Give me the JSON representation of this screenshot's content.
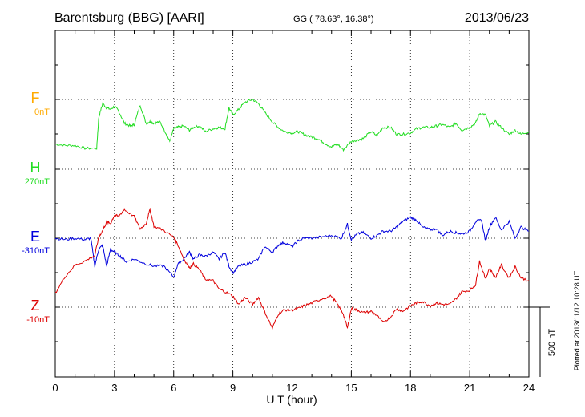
{
  "header": {
    "station": "Barentsburg (BBG)  [AARI]",
    "coords": "GG ( 78.63°,  16.38°)",
    "date": "2013/06/23"
  },
  "footer": {
    "plotted": "Plotted at 2013/11/12 10:28 UT"
  },
  "chart_data": {
    "type": "line",
    "xlabel": "U T (hour)",
    "xlim": [
      0,
      24
    ],
    "xticks": [
      "0",
      "3",
      "6",
      "9",
      "12",
      "15",
      "18",
      "21",
      "24"
    ],
    "scale_bar_label": "500 nT",
    "grid": true,
    "series": [
      {
        "name": "F",
        "baseline_label": "0nT",
        "color": "#ffaa00",
        "x": [],
        "y": []
      },
      {
        "name": "H",
        "baseline_label": "270nT",
        "color": "#22dd22",
        "x": [
          0,
          0.5,
          1,
          1.5,
          2.1,
          2.2,
          2.4,
          2.6,
          2.8,
          3,
          3.2,
          3.5,
          3.8,
          4,
          4.3,
          4.6,
          4.8,
          5,
          5.3,
          5.6,
          5.8,
          6,
          6.2,
          6.5,
          6.8,
          7,
          7.3,
          7.6,
          8,
          8.3,
          8.6,
          8.8,
          9,
          9.3,
          9.6,
          10,
          10.3,
          10.6,
          11,
          11.3,
          11.6,
          12,
          12.3,
          12.6,
          13,
          13.3,
          13.6,
          14,
          14.3,
          14.6,
          15,
          15.3,
          15.6,
          16,
          16.3,
          16.6,
          17,
          17.3,
          17.6,
          18,
          18.3,
          18.6,
          19,
          19.3,
          19.6,
          20,
          20.3,
          20.6,
          21,
          21.3,
          21.5,
          21.8,
          22,
          22.3,
          22.6,
          23,
          23.3,
          23.6,
          24
        ],
        "y": [
          180,
          170,
          170,
          150,
          150,
          370,
          470,
          440,
          430,
          450,
          420,
          330,
          310,
          320,
          460,
          330,
          340,
          330,
          340,
          260,
          200,
          290,
          300,
          310,
          280,
          300,
          310,
          270,
          290,
          300,
          290,
          440,
          390,
          430,
          480,
          500,
          470,
          410,
          340,
          300,
          270,
          260,
          270,
          250,
          230,
          220,
          190,
          160,
          180,
          140,
          200,
          210,
          220,
          270,
          240,
          300,
          300,
          250,
          250,
          260,
          290,
          300,
          300,
          310,
          320,
          300,
          330,
          280,
          300,
          330,
          400,
          390,
          310,
          340,
          300,
          250,
          280,
          250,
          270
        ]
      },
      {
        "name": "E",
        "baseline_label": "-310nT",
        "color": "#0000dd",
        "x": [
          0,
          0.5,
          1,
          1.5,
          1.8,
          2,
          2.2,
          2.4,
          2.6,
          2.8,
          3,
          3.3,
          3.6,
          4,
          4.5,
          5,
          5.5,
          6,
          6.2,
          6.5,
          6.8,
          7,
          7.3,
          7.6,
          8,
          8.3,
          8.6,
          8.8,
          9,
          9.3,
          9.6,
          10,
          10.3,
          10.6,
          11,
          11.3,
          11.6,
          12,
          12.3,
          12.6,
          13,
          13.5,
          14,
          14.5,
          14.8,
          15,
          15.3,
          15.6,
          16,
          16.3,
          16.6,
          17,
          17.3,
          17.6,
          18,
          18.3,
          18.6,
          19,
          19.3,
          19.6,
          20,
          20.3,
          20.6,
          21,
          21.3,
          21.6,
          21.8,
          22,
          22.3,
          22.6,
          23,
          23.3,
          23.6,
          24
        ],
        "y": [
          0,
          -10,
          0,
          -10,
          0,
          -200,
          -80,
          -50,
          -200,
          -80,
          -100,
          -130,
          -170,
          -150,
          -180,
          -200,
          -200,
          -280,
          -190,
          -150,
          -100,
          -150,
          -120,
          -130,
          -100,
          -150,
          -100,
          -200,
          -250,
          -200,
          -190,
          -170,
          -150,
          -60,
          -100,
          -50,
          -30,
          -60,
          -20,
          0,
          0,
          10,
          20,
          0,
          100,
          -10,
          30,
          40,
          0,
          20,
          50,
          50,
          80,
          120,
          150,
          130,
          80,
          60,
          70,
          20,
          50,
          40,
          30,
          50,
          120,
          130,
          -20,
          80,
          150,
          60,
          120,
          0,
          80,
          50
        ]
      },
      {
        "name": "Z",
        "baseline_label": "-10nT",
        "color": "#dd0000",
        "x": [
          0,
          0.5,
          1,
          1.5,
          2,
          2.2,
          2.4,
          2.6,
          2.8,
          3,
          3.2,
          3.5,
          4,
          4.3,
          4.6,
          4.8,
          5,
          5.5,
          6,
          6.2,
          6.5,
          6.8,
          7,
          7.3,
          7.6,
          8,
          8.3,
          8.6,
          9,
          9.3,
          9.6,
          10,
          10.3,
          10.6,
          11,
          11.3,
          11.6,
          12,
          12.3,
          12.6,
          13,
          13.5,
          14,
          14.3,
          14.6,
          14.8,
          15,
          15.3,
          15.6,
          16,
          16.3,
          16.6,
          17,
          17.3,
          17.6,
          18,
          18.3,
          18.6,
          19,
          19.3,
          19.6,
          20,
          20.3,
          20.6,
          21,
          21.3,
          21.5,
          21.8,
          22,
          22.3,
          22.6,
          23,
          23.3,
          23.6,
          24
        ],
        "y": [
          100,
          220,
          300,
          330,
          370,
          500,
          550,
          610,
          600,
          660,
          650,
          700,
          650,
          560,
          600,
          700,
          580,
          550,
          500,
          450,
          350,
          280,
          310,
          270,
          200,
          190,
          130,
          110,
          80,
          20,
          70,
          20,
          70,
          -30,
          -150,
          -50,
          -20,
          -20,
          -10,
          10,
          30,
          60,
          80,
          20,
          -50,
          -150,
          -10,
          -20,
          -40,
          -30,
          -60,
          -110,
          -70,
          -10,
          -30,
          10,
          30,
          40,
          10,
          30,
          20,
          20,
          60,
          110,
          120,
          160,
          330,
          200,
          280,
          210,
          300,
          210,
          290,
          210,
          190
        ]
      }
    ]
  }
}
